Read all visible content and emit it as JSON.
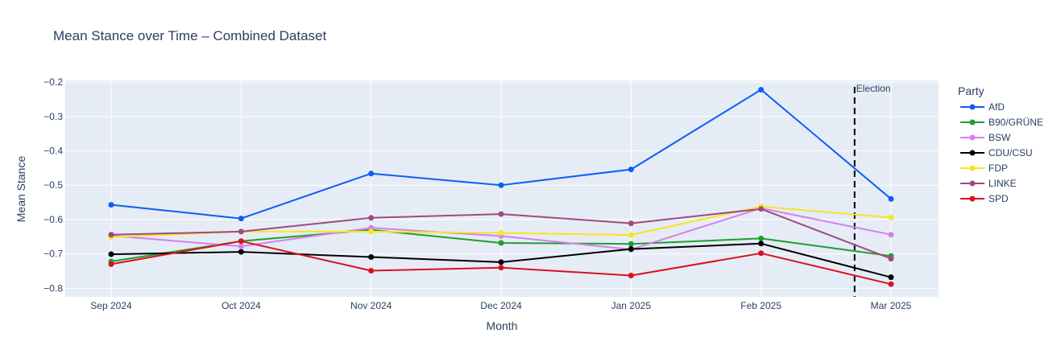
{
  "chart_data": {
    "type": "line",
    "title": "Mean Stance over Time – Combined Dataset",
    "xlabel": "Month",
    "ylabel": "Mean Stance",
    "categories": [
      "Sep 2024",
      "Oct 2024",
      "Nov 2024",
      "Dec 2024",
      "Jan 2025",
      "Feb 2025",
      "Mar 2025"
    ],
    "ylim": [
      -0.825,
      -0.195
    ],
    "y_ticks": [
      "−0.2",
      "−0.3",
      "−0.4",
      "−0.5",
      "−0.6",
      "−0.7",
      "−0.8"
    ],
    "y_tick_values": [
      -0.2,
      -0.3,
      -0.4,
      -0.5,
      -0.6,
      -0.7,
      -0.8
    ],
    "grid": true,
    "legend_title": "Party",
    "legend_position": "right",
    "series": [
      {
        "name": "AfD",
        "color": "#0d5ef4",
        "values": [
          -0.557,
          -0.597,
          -0.466,
          -0.5,
          -0.454,
          -0.222,
          -0.54
        ]
      },
      {
        "name": "B90/GRÜNE",
        "color": "#1f9e2c",
        "values": [
          -0.722,
          -0.663,
          -0.63,
          -0.668,
          -0.671,
          -0.655,
          -0.706
        ]
      },
      {
        "name": "BSW",
        "color": "#d67ef0",
        "values": [
          -0.647,
          -0.678,
          -0.624,
          -0.648,
          -0.687,
          -0.567,
          -0.644
        ]
      },
      {
        "name": "CDU/CSU",
        "color": "#000000",
        "values": [
          -0.701,
          -0.694,
          -0.709,
          -0.724,
          -0.686,
          -0.67,
          -0.768
        ]
      },
      {
        "name": "FDP",
        "color": "#f6e620",
        "values": [
          -0.651,
          -0.635,
          -0.635,
          -0.639,
          -0.645,
          -0.562,
          -0.594
        ]
      },
      {
        "name": "LINKE",
        "color": "#a0497f",
        "values": [
          -0.644,
          -0.635,
          -0.595,
          -0.584,
          -0.611,
          -0.569,
          -0.714
        ]
      },
      {
        "name": "SPD",
        "color": "#d8111a",
        "values": [
          -0.73,
          -0.663,
          -0.749,
          -0.74,
          -0.763,
          -0.698,
          -0.788
        ]
      }
    ],
    "annotation": {
      "label": "Election",
      "x_position": 5.72
    }
  }
}
